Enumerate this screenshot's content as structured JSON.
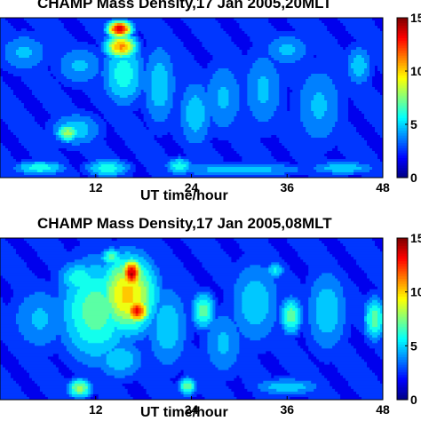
{
  "chart_data": [
    {
      "type": "heatmap",
      "title": "CHAMP Mass Density,17 Jan 2005,20MLT",
      "xlabel": "UT time/hour",
      "ylabel": "",
      "xlim": [
        0,
        48
      ],
      "x_ticks": [
        "12",
        "24",
        "36",
        "48"
      ],
      "colorbar": {
        "range": [
          0,
          15
        ],
        "ticks": [
          "0",
          "5",
          "10",
          "15"
        ],
        "colormap": "jet"
      },
      "features": [
        {
          "x": 15.0,
          "y": 0.93,
          "value": 14,
          "sx": 1.2,
          "sy": 0.04
        },
        {
          "x": 15.2,
          "y": 0.82,
          "value": 11,
          "sx": 1.6,
          "sy": 0.06
        },
        {
          "x": 15.5,
          "y": 0.65,
          "value": 6,
          "sx": 2.4,
          "sy": 0.18
        },
        {
          "x": 8.5,
          "y": 0.28,
          "value": 8,
          "sx": 1.2,
          "sy": 0.05
        },
        {
          "x": 9.5,
          "y": 0.3,
          "value": 5,
          "sx": 3.0,
          "sy": 0.1
        },
        {
          "x": 13.5,
          "y": 0.06,
          "value": 6,
          "sx": 2.5,
          "sy": 0.05
        },
        {
          "x": 22.5,
          "y": 0.07,
          "value": 6,
          "sx": 1.5,
          "sy": 0.05
        },
        {
          "x": 5.0,
          "y": 0.06,
          "value": 6,
          "sx": 3.0,
          "sy": 0.04
        },
        {
          "x": 30.0,
          "y": 0.05,
          "value": 5,
          "sx": 8.0,
          "sy": 0.04
        },
        {
          "x": 43.0,
          "y": 0.06,
          "value": 5,
          "sx": 4.0,
          "sy": 0.04
        },
        {
          "x": 20.0,
          "y": 0.58,
          "value": 5,
          "sx": 2.0,
          "sy": 0.25
        },
        {
          "x": 24.5,
          "y": 0.4,
          "value": 5,
          "sx": 2.0,
          "sy": 0.2
        },
        {
          "x": 28.0,
          "y": 0.5,
          "value": 4.5,
          "sx": 2.5,
          "sy": 0.22
        },
        {
          "x": 33.0,
          "y": 0.55,
          "value": 4.5,
          "sx": 2.5,
          "sy": 0.25
        },
        {
          "x": 40.0,
          "y": 0.45,
          "value": 4.5,
          "sx": 3.0,
          "sy": 0.25
        },
        {
          "x": 45.0,
          "y": 0.7,
          "value": 5,
          "sx": 1.6,
          "sy": 0.12
        },
        {
          "x": 3.0,
          "y": 0.78,
          "value": 4.5,
          "sx": 3.0,
          "sy": 0.12
        },
        {
          "x": 10.0,
          "y": 0.7,
          "value": 4.5,
          "sx": 3.0,
          "sy": 0.12
        },
        {
          "x": 36.0,
          "y": 0.8,
          "value": 4.5,
          "sx": 3.0,
          "sy": 0.1
        }
      ]
    },
    {
      "type": "heatmap",
      "title": "CHAMP Mass Density,17 Jan 2005,08MLT",
      "xlabel": "UT time/hour",
      "ylabel": "",
      "xlim": [
        0,
        48
      ],
      "x_ticks": [
        "12",
        "24",
        "36",
        "48"
      ],
      "colorbar": {
        "range": [
          0,
          15
        ],
        "ticks": [
          "0",
          "5",
          "10",
          "15"
        ],
        "colormap": "jet"
      },
      "features": [
        {
          "x": 16.5,
          "y": 0.78,
          "value": 14,
          "sx": 1.0,
          "sy": 0.07
        },
        {
          "x": 17.2,
          "y": 0.55,
          "value": 13,
          "sx": 1.2,
          "sy": 0.06
        },
        {
          "x": 16.0,
          "y": 0.65,
          "value": 10,
          "sx": 3.0,
          "sy": 0.2
        },
        {
          "x": 12.0,
          "y": 0.55,
          "value": 7,
          "sx": 4.0,
          "sy": 0.28
        },
        {
          "x": 14.0,
          "y": 0.88,
          "value": 7,
          "sx": 1.2,
          "sy": 0.05
        },
        {
          "x": 10.0,
          "y": 0.75,
          "value": 6,
          "sx": 2.5,
          "sy": 0.1
        },
        {
          "x": 25.5,
          "y": 0.55,
          "value": 7,
          "sx": 1.3,
          "sy": 0.1
        },
        {
          "x": 36.5,
          "y": 0.52,
          "value": 7,
          "sx": 1.2,
          "sy": 0.1
        },
        {
          "x": 47.0,
          "y": 0.5,
          "value": 7,
          "sx": 1.2,
          "sy": 0.12
        },
        {
          "x": 34.5,
          "y": 0.8,
          "value": 5.5,
          "sx": 1.0,
          "sy": 0.05
        },
        {
          "x": 32.0,
          "y": 0.6,
          "value": 5,
          "sx": 3.0,
          "sy": 0.25
        },
        {
          "x": 41.0,
          "y": 0.55,
          "value": 5,
          "sx": 2.5,
          "sy": 0.25
        },
        {
          "x": 28.0,
          "y": 0.35,
          "value": 4.5,
          "sx": 2.5,
          "sy": 0.2
        },
        {
          "x": 21.0,
          "y": 0.45,
          "value": 5,
          "sx": 2.5,
          "sy": 0.25
        },
        {
          "x": 5.0,
          "y": 0.5,
          "value": 4.5,
          "sx": 3.5,
          "sy": 0.2
        },
        {
          "x": 10.0,
          "y": 0.07,
          "value": 8,
          "sx": 1.3,
          "sy": 0.05
        },
        {
          "x": 23.5,
          "y": 0.08,
          "value": 7,
          "sx": 1.0,
          "sy": 0.05
        },
        {
          "x": 36.0,
          "y": 0.08,
          "value": 5,
          "sx": 4.0,
          "sy": 0.05
        },
        {
          "x": 15.0,
          "y": 0.25,
          "value": 5,
          "sx": 3.0,
          "sy": 0.12
        }
      ]
    }
  ]
}
